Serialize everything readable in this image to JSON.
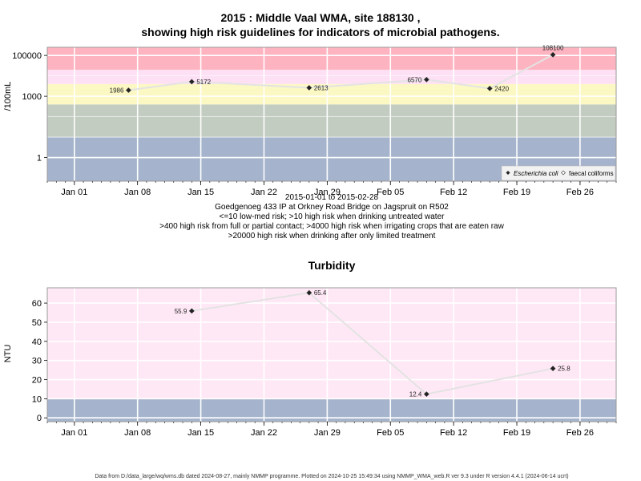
{
  "colors": {
    "red_band": "#fdb3c0",
    "pink_band": "#fde0f3",
    "light_pink_band": "#ffe8f5",
    "yellow_band": "#fcf8c4",
    "green_band": "#c2ccc0",
    "blue_band": "#a5b4cc",
    "series_line": "#e3e3e3",
    "marker": "#222222"
  },
  "footer": "Data from D:/data_large/wq/wms.db dated 2024-08-27, mainly NMMP programme. Plotted on 2024-10-25 15:49:34 using NMMP_WMA_web.R ver 9.3 under R version 4.4.1 (2024-06-14 ucrt)",
  "chart_data": [
    {
      "type": "line",
      "title": "2015 : Middle Vaal WMA, site 188130 ,",
      "subtitle": "showing high risk guidelines for indicators of microbial pathogens.",
      "ylabel": "/100mL",
      "y_scale": "log10",
      "ylim": [
        0.07,
        250000
      ],
      "yticks": [
        1,
        1000,
        100000
      ],
      "ytick_labels": [
        "1",
        "1000",
        "100000"
      ],
      "xlim": [
        "2014-12-29",
        "2015-03-02"
      ],
      "xtick_dates": [
        "2015-01-01",
        "2015-01-08",
        "2015-01-15",
        "2015-01-22",
        "2015-01-29",
        "2015-02-05",
        "2015-02-12",
        "2015-02-19",
        "2015-02-26"
      ],
      "xtick_labels": [
        "Jan 01",
        "Jan 08",
        "Jan 15",
        "Jan 22",
        "Jan 29",
        "Feb 05",
        "Feb 12",
        "Feb 19",
        "Feb 26"
      ],
      "grid": true,
      "bands": [
        {
          "from": 0.07,
          "to": 10,
          "color": "blue"
        },
        {
          "from": 10,
          "to": 400,
          "color": "green"
        },
        {
          "from": 400,
          "to": 4000,
          "color": "yellow"
        },
        {
          "from": 4000,
          "to": 20000,
          "color": "pink"
        },
        {
          "from": 20000,
          "to": 250000,
          "color": "red"
        }
      ],
      "series": [
        {
          "name": "Escherichia coli",
          "marker": "filled-diamond",
          "x": [
            "2015-01-07",
            "2015-01-14",
            "2015-01-27",
            "2015-02-09",
            "2015-02-16",
            "2015-02-23"
          ],
          "values": [
            1986,
            5172,
            2613,
            6570,
            2420,
            108100
          ],
          "labels": [
            "1986",
            "5172",
            "2613",
            "6570",
            "2420",
            "108100"
          ]
        },
        {
          "name": "faecal coliforms",
          "marker": "open-diamond",
          "x": [],
          "values": []
        }
      ],
      "legend_position": "bottom-right",
      "notes": [
        "2015-01-01 to 2015-02-28",
        "Goedgenoeg 433 IP at Orkney Road Bridge on Jagspruit on R502",
        "<=10 low-med risk; >10 high risk when drinking untreated water",
        ">400 high risk from full or partial contact; >4000 high risk when irrigating crops that are eaten raw",
        ">20000 high risk when drinking after only limited treatment"
      ]
    },
    {
      "type": "line",
      "title": "Turbidity",
      "ylabel": "NTU",
      "ylim": [
        -2,
        68
      ],
      "yticks": [
        0,
        10,
        20,
        30,
        40,
        50,
        60
      ],
      "ytick_labels": [
        "0",
        "10",
        "20",
        "30",
        "40",
        "50",
        "60"
      ],
      "xlim": [
        "2014-12-29",
        "2015-03-02"
      ],
      "xtick_dates": [
        "2015-01-01",
        "2015-01-08",
        "2015-01-15",
        "2015-01-22",
        "2015-01-29",
        "2015-02-05",
        "2015-02-12",
        "2015-02-19",
        "2015-02-26"
      ],
      "xtick_labels": [
        "Jan 01",
        "Jan 08",
        "Jan 15",
        "Jan 22",
        "Jan 29",
        "Feb 05",
        "Feb 12",
        "Feb 19",
        "Feb 26"
      ],
      "grid": true,
      "bands": [
        {
          "from": -2,
          "to": 10,
          "color": "blue"
        },
        {
          "from": 10,
          "to": 68,
          "color": "light_pink"
        }
      ],
      "series": [
        {
          "marker": "filled-diamond",
          "x": [
            "2015-01-14",
            "2015-01-27",
            "2015-02-09",
            "2015-02-23"
          ],
          "values": [
            55.9,
            65.4,
            12.4,
            25.8
          ],
          "labels": [
            "55.9",
            "65.4",
            "12.4",
            "25.8"
          ]
        }
      ]
    }
  ]
}
